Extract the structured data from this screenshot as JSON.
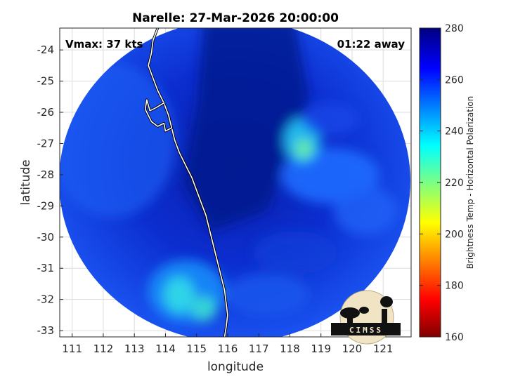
{
  "chart_data": {
    "type": "heatmap",
    "title": "Narelle: 27-Mar-2026 20:00:00",
    "xlabel": "longitude",
    "ylabel": "latitude",
    "xlim": [
      110.6,
      121.9
    ],
    "ylim": [
      -33.2,
      -23.3
    ],
    "x_ticks": [
      111,
      112,
      113,
      114,
      115,
      116,
      117,
      118,
      119,
      120,
      121
    ],
    "y_ticks": [
      -24,
      -25,
      -26,
      -27,
      -28,
      -29,
      -30,
      -31,
      -32,
      -33
    ],
    "grid": true,
    "annotations": {
      "top_left": "Vmax: 37 kts",
      "top_right": "01:22 away"
    },
    "colorbar": {
      "label": "Brightness Temp - Horizontal Polarization",
      "range": [
        160,
        280
      ],
      "ticks": [
        280,
        260,
        240,
        220,
        200,
        180,
        160
      ],
      "colormap": "jet",
      "location": "right"
    },
    "swath": {
      "center": [
        116.0,
        -28.25
      ],
      "radius_deg_lon": 5.6,
      "radius_deg_lat": 5.2
    },
    "features": [
      {
        "name": "warm-core-north",
        "lon": 117.5,
        "lat": -25.5,
        "value": 272
      },
      {
        "name": "convective-band-ne",
        "lon": 118.4,
        "lat": -27.1,
        "value": 238
      },
      {
        "name": "convective-band-east",
        "lon": 119.0,
        "lat": -28.0,
        "value": 252
      },
      {
        "name": "convective-band-south",
        "lon": 114.4,
        "lat": -31.8,
        "value": 232
      },
      {
        "name": "background-west",
        "lon": 112.0,
        "lat": -27.5,
        "value": 258
      }
    ],
    "coastline": [
      [
        113.75,
        -23.3
      ],
      [
        113.6,
        -23.7
      ],
      [
        113.55,
        -24.1
      ],
      [
        113.45,
        -24.5
      ],
      [
        113.6,
        -24.9
      ],
      [
        113.75,
        -25.3
      ],
      [
        113.95,
        -25.7
      ],
      [
        114.1,
        -26.1
      ],
      [
        114.2,
        -26.5
      ],
      [
        114.3,
        -26.9
      ],
      [
        114.45,
        -27.3
      ],
      [
        114.65,
        -27.7
      ],
      [
        114.85,
        -28.1
      ],
      [
        115.0,
        -28.5
      ],
      [
        115.15,
        -28.9
      ],
      [
        115.3,
        -29.3
      ],
      [
        115.4,
        -29.7
      ],
      [
        115.5,
        -30.1
      ],
      [
        115.6,
        -30.5
      ],
      [
        115.7,
        -30.9
      ],
      [
        115.8,
        -31.3
      ],
      [
        115.9,
        -31.7
      ],
      [
        115.95,
        -32.1
      ],
      [
        116.0,
        -32.5
      ],
      [
        115.95,
        -32.9
      ],
      [
        115.9,
        -33.2
      ]
    ],
    "shark_bay": [
      [
        113.95,
        -25.7
      ],
      [
        113.7,
        -25.85
      ],
      [
        113.5,
        -25.95
      ],
      [
        113.4,
        -25.6
      ],
      [
        113.35,
        -25.9
      ],
      [
        113.55,
        -26.3
      ],
      [
        113.75,
        -26.45
      ],
      [
        113.95,
        -26.35
      ],
      [
        114.0,
        -26.6
      ],
      [
        114.2,
        -26.5
      ],
      [
        114.1,
        -26.1
      ]
    ]
  },
  "logo": {
    "text": "CIMSS"
  },
  "colors": {
    "grid": "#dcdcdc",
    "axis": "#262626",
    "coast": "#ffffff"
  }
}
